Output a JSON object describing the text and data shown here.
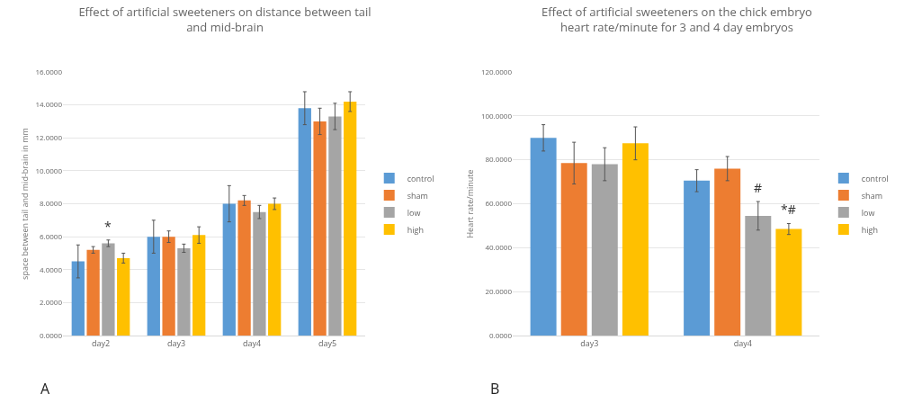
{
  "chart_data": [
    {
      "type": "bar",
      "title": "Effect of artificial sweeteners on distance between tail and mid-brain",
      "ylabel": "space between tail and mid-brain in mm",
      "categories": [
        "day2",
        "day3",
        "day4",
        "day5"
      ],
      "series": [
        {
          "name": "control",
          "color": "#5b9bd5",
          "values": [
            4.5,
            6.0,
            8.0,
            13.8
          ],
          "errors": [
            1.0,
            1.0,
            1.1,
            1.0
          ]
        },
        {
          "name": "sham",
          "color": "#ed7d31",
          "values": [
            5.2,
            6.0,
            8.2,
            13.0
          ],
          "errors": [
            0.2,
            0.35,
            0.3,
            0.8
          ]
        },
        {
          "name": "low",
          "color": "#a5a5a5",
          "values": [
            5.6,
            5.3,
            7.5,
            13.3
          ],
          "errors": [
            0.2,
            0.25,
            0.4,
            0.8
          ]
        },
        {
          "name": "high",
          "color": "#ffc000",
          "values": [
            4.7,
            6.1,
            8.0,
            14.2
          ],
          "errors": [
            0.3,
            0.5,
            0.35,
            0.6
          ]
        }
      ],
      "ylim": [
        0,
        16
      ],
      "yticks": [
        {
          "value": 0,
          "label": "0.0000"
        },
        {
          "value": 2,
          "label": "2.0000"
        },
        {
          "value": 4,
          "label": "4.0000"
        },
        {
          "value": 6,
          "label": "6.0000"
        },
        {
          "value": 8,
          "label": "8.0000"
        },
        {
          "value": 10,
          "label": "10.0000"
        },
        {
          "value": 12,
          "label": "12.0000"
        },
        {
          "value": 14,
          "label": "14.0000"
        },
        {
          "value": 16,
          "label": "16.0000"
        }
      ],
      "grid": "y",
      "legend": "right",
      "annotations": [
        {
          "text": "*",
          "x": "day2",
          "y": 5.8
        },
        "A"
      ]
    },
    {
      "type": "bar",
      "title": "Effect of artificial sweeteners on the chick embryo heart rate/minute for 3 and 4 day embryos",
      "ylabel": "Heart rate/minute",
      "categories": [
        "day3",
        "day4"
      ],
      "series": [
        {
          "name": "control",
          "color": "#5b9bd5",
          "values": [
            90,
            70.5
          ],
          "errors": [
            6,
            5
          ]
        },
        {
          "name": "sham",
          "color": "#ed7d31",
          "values": [
            78.5,
            76
          ],
          "errors": [
            9.5,
            5.5
          ]
        },
        {
          "name": "low",
          "color": "#a5a5a5",
          "values": [
            78,
            54.5
          ],
          "errors": [
            7.5,
            6.5
          ]
        },
        {
          "name": "high",
          "color": "#ffc000",
          "values": [
            87.5,
            48.5
          ],
          "errors": [
            7.5,
            2.5
          ]
        }
      ],
      "ylim": [
        0,
        120
      ],
      "yticks": [
        {
          "value": 0,
          "label": "0.0000"
        },
        {
          "value": 20,
          "label": "20.0000"
        },
        {
          "value": 40,
          "label": "40.0000"
        },
        {
          "value": 60,
          "label": "60.0000"
        },
        {
          "value": 80,
          "label": "80.0000"
        },
        {
          "value": 100,
          "label": "100.0000"
        },
        {
          "value": 120,
          "label": "120.0000"
        }
      ],
      "grid": "y",
      "legend": "right",
      "annotations": [
        {
          "text": "#",
          "x": "day4",
          "y": 61
        },
        "*#",
        "B"
      ]
    }
  ]
}
